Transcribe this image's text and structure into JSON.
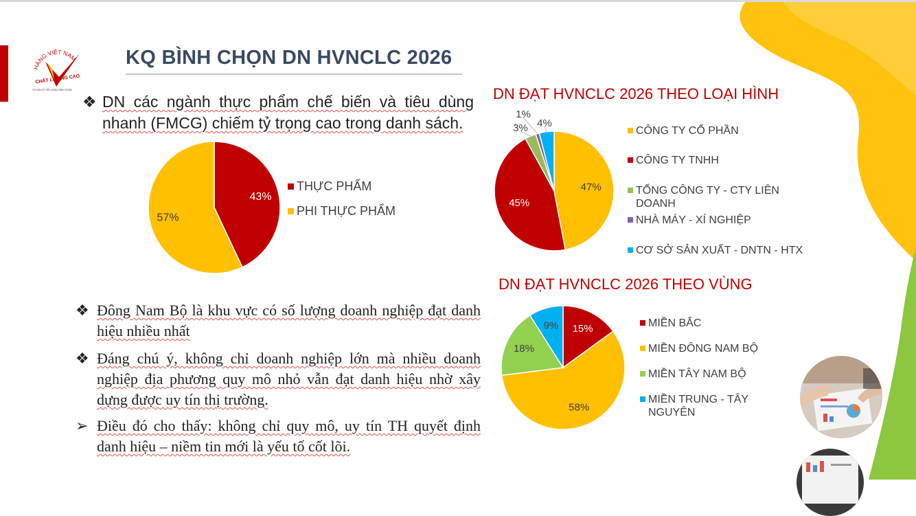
{
  "slide": {
    "title": "KQ BÌNH CHỌN DN HVNCLC 2026",
    "logo": {
      "arc_text": "HÀNG VIỆT NAM",
      "main_text": "CHẤT LƯỢNG CAO",
      "sub_text": "DO NGƯỜI TIÊU DÙNG BÌNH CHỌN"
    }
  },
  "bullets": [
    {
      "marker": "❖",
      "text": "DN các ngành thực phẩm chế biến và tiêu dùng nhanh (FMCG) chiếm tỷ trọng cao trong danh sách."
    },
    {
      "marker": "❖",
      "text": "Đông Nam Bộ là khu vực có số lượng doanh nghiệp đạt danh hiệu nhiều nhất"
    },
    {
      "marker": "❖",
      "text": "Đáng chú ý, không chỉ doanh nghiệp lớn mà nhiều doanh nghiệp địa phương quy mô nhỏ vẫn đạt danh hiệu nhờ xây dựng được uy tín thị trường."
    },
    {
      "marker": "➢",
      "text": "Điều đó cho thấy: không chỉ quy mô, uy tín TH quyết định danh hiệu – niềm tin mới là yếu tố cốt lõi."
    }
  ],
  "colors": {
    "title": "#3a4a63",
    "accent_red": "#c00000",
    "yellow": "#ffc000",
    "green": "#92d050",
    "light_green": "#9bbb59",
    "purple": "#8064a2",
    "blue": "#00b0f0",
    "deco_yellow": "#ffc20e",
    "deco_green": "#8dc63f"
  },
  "chart_data": [
    {
      "type": "pie",
      "title": "",
      "slices": [
        {
          "label": "THỰC PHẨM",
          "value": 43,
          "value_label": "43%",
          "color": "#c00000"
        },
        {
          "label": "PHI THỰC PHẨM",
          "value": 57,
          "value_label": "57%",
          "color": "#ffc000"
        }
      ],
      "legend_position": "right"
    },
    {
      "type": "pie",
      "title": "DN ĐẠT HVNCLC 2026 THEO LOẠI HÌNH",
      "slices": [
        {
          "label": "CÔNG TY CỔ PHẦN",
          "value": 47,
          "value_label": "47%",
          "color": "#ffc000"
        },
        {
          "label": "CÔNG TY TNHH",
          "value": 45,
          "value_label": "45%",
          "color": "#c00000"
        },
        {
          "label": "TỔNG CÔNG TY - CTY LIÊN DOANH",
          "value": 3,
          "value_label": "3%",
          "color": "#9bbb59"
        },
        {
          "label": "NHÀ MÁY - XÍ NGHIỆP",
          "value": 1,
          "value_label": "1%",
          "color": "#8064a2"
        },
        {
          "label": "CƠ SỞ SẢN XUẤT - DNTN - HTX",
          "value": 4,
          "value_label": "4%",
          "color": "#00b0f0"
        }
      ],
      "legend_position": "right"
    },
    {
      "type": "pie",
      "title": "DN ĐẠT HVNCLC 2026 THEO VÙNG",
      "slices": [
        {
          "label": "MIỀN BẮC",
          "value": 15,
          "value_label": "15%",
          "color": "#c00000"
        },
        {
          "label": "MIỀN ĐÔNG NAM BỘ",
          "value": 58,
          "value_label": "58%",
          "color": "#ffc000"
        },
        {
          "label": "MIỀN TÂY NAM BỘ",
          "value": 18,
          "value_label": "18%",
          "color": "#92d050"
        },
        {
          "label": "MIỀN TRUNG - TÂY NGUYÊN",
          "value": 9,
          "value_label": "9%",
          "color": "#00b0f0"
        }
      ],
      "legend_position": "right"
    }
  ]
}
